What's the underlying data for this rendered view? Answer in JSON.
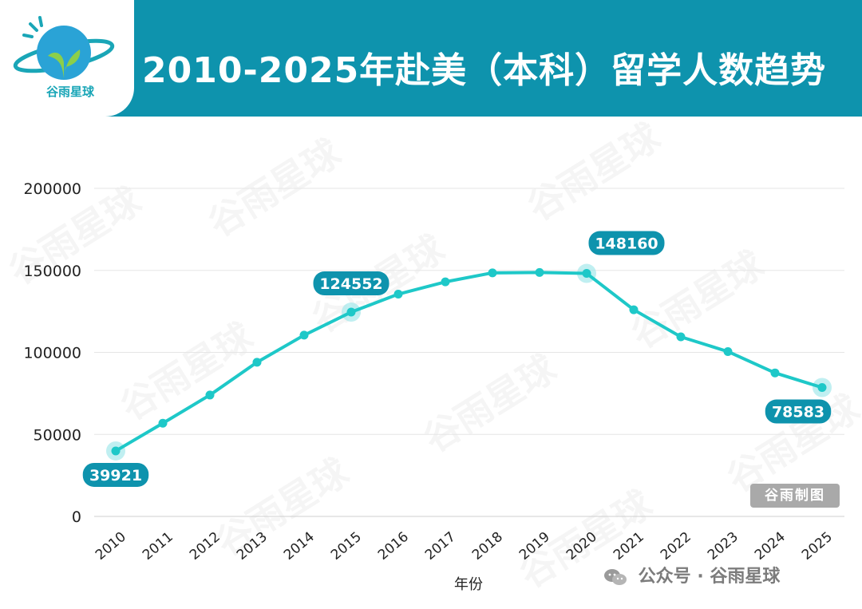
{
  "brand": {
    "name": "谷雨星球"
  },
  "header": {
    "title": "2010-2025年赴美（本科）留学人数趋势"
  },
  "credit": "谷雨制图",
  "footer": {
    "source": "公众号 · 谷雨星球"
  },
  "colors": {
    "header": "#0e93ad",
    "line": "#1ec8c8",
    "label_bg": "#0e93ad",
    "credit_bg": "#a9a9a9"
  },
  "chart_data": {
    "type": "line",
    "title": "2010-2025年赴美（本科）留学人数趋势",
    "xlabel": "年份",
    "ylabel": "",
    "categories": [
      "2010",
      "2011",
      "2012",
      "2013",
      "2014",
      "2015",
      "2016",
      "2017",
      "2018",
      "2019",
      "2020",
      "2021",
      "2022",
      "2023",
      "2024",
      "2025"
    ],
    "series": [
      {
        "values": [
          39921,
          56800,
          74000,
          94000,
          110500,
          124552,
          135500,
          143000,
          148500,
          148700,
          148160,
          126000,
          109500,
          100500,
          87500,
          78583
        ]
      }
    ],
    "y_ticks": [
      "0",
      "50000",
      "100000",
      "150000",
      "200000"
    ],
    "ylim": [
      0,
      200000
    ],
    "grid": true,
    "legend": "none",
    "annotations": [
      {
        "index": 0,
        "label": "39921"
      },
      {
        "index": 5,
        "label": "124552"
      },
      {
        "index": 10,
        "label": "148160"
      },
      {
        "index": 15,
        "label": "78583"
      }
    ]
  }
}
